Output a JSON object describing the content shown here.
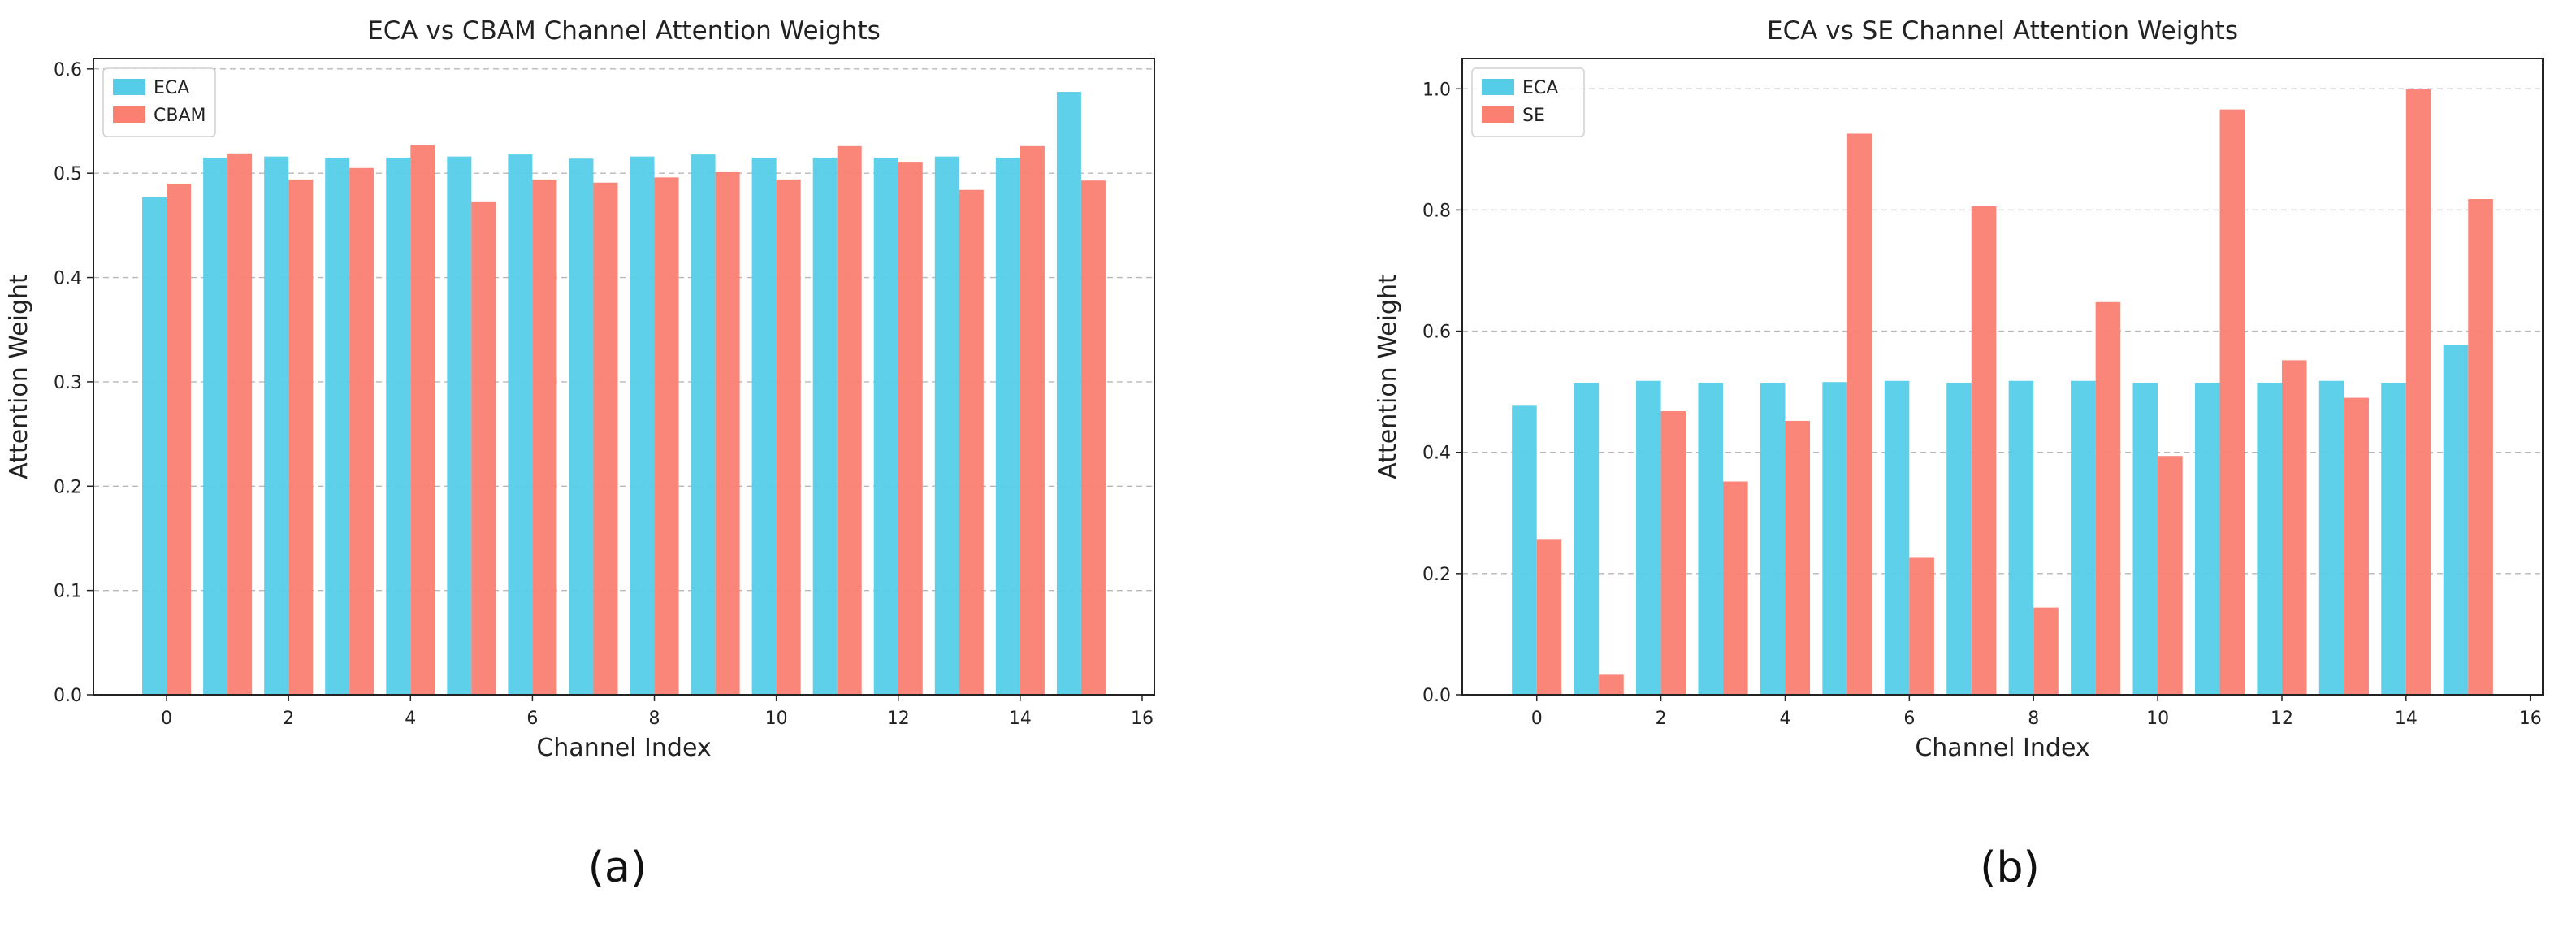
{
  "chart_data": [
    {
      "type": "bar",
      "panel_label": "(a)",
      "title": "ECA vs CBAM Channel Attention Weights",
      "xlabel": "Channel Index",
      "ylabel": "Attention Weight",
      "xlim": [
        -1.2,
        16.2
      ],
      "ylim": [
        0,
        0.61
      ],
      "xticks": [
        0,
        2,
        4,
        6,
        8,
        10,
        12,
        14,
        16
      ],
      "xtick_labels": [
        "0",
        "2",
        "4",
        "6",
        "8",
        "10",
        "12",
        "14",
        "16"
      ],
      "yticks": [
        0.0,
        0.1,
        0.2,
        0.3,
        0.4,
        0.5,
        0.6
      ],
      "ytick_labels": [
        "0.0",
        "0.1",
        "0.2",
        "0.3",
        "0.4",
        "0.5",
        "0.6"
      ],
      "grid": "y-dashed",
      "legend_position": "top-left",
      "categories": [
        0,
        1,
        2,
        3,
        4,
        5,
        6,
        7,
        8,
        9,
        10,
        11,
        12,
        13,
        14,
        15
      ],
      "series": [
        {
          "name": "ECA",
          "color": "#56CDE8",
          "values": [
            0.477,
            0.515,
            0.516,
            0.515,
            0.515,
            0.516,
            0.518,
            0.514,
            0.516,
            0.518,
            0.515,
            0.515,
            0.515,
            0.516,
            0.515,
            0.578
          ]
        },
        {
          "name": "CBAM",
          "color": "#FA8072",
          "values": [
            0.49,
            0.519,
            0.494,
            0.505,
            0.527,
            0.473,
            0.494,
            0.491,
            0.496,
            0.501,
            0.494,
            0.526,
            0.511,
            0.484,
            0.526,
            0.493
          ]
        }
      ]
    },
    {
      "type": "bar",
      "panel_label": "(b)",
      "title": "ECA vs SE Channel Attention Weights",
      "xlabel": "Channel Index",
      "ylabel": "Attention Weight",
      "xlim": [
        -1.2,
        16.2
      ],
      "ylim": [
        0,
        1.05
      ],
      "xticks": [
        0,
        2,
        4,
        6,
        8,
        10,
        12,
        14,
        16
      ],
      "xtick_labels": [
        "0",
        "2",
        "4",
        "6",
        "8",
        "10",
        "12",
        "14",
        "16"
      ],
      "yticks": [
        0.0,
        0.2,
        0.4,
        0.6,
        0.8,
        1.0
      ],
      "ytick_labels": [
        "0.0",
        "0.2",
        "0.4",
        "0.6",
        "0.8",
        "1.0"
      ],
      "grid": "y-dashed",
      "legend_position": "top-left",
      "categories": [
        0,
        1,
        2,
        3,
        4,
        5,
        6,
        7,
        8,
        9,
        10,
        11,
        12,
        13,
        14,
        15
      ],
      "series": [
        {
          "name": "ECA",
          "color": "#56CDE8",
          "values": [
            0.477,
            0.515,
            0.518,
            0.515,
            0.515,
            0.516,
            0.518,
            0.515,
            0.518,
            0.518,
            0.515,
            0.515,
            0.515,
            0.518,
            0.515,
            0.578
          ]
        },
        {
          "name": "SE",
          "color": "#FA8072",
          "values": [
            0.257,
            0.033,
            0.468,
            0.352,
            0.452,
            0.926,
            0.226,
            0.806,
            0.144,
            0.648,
            0.394,
            0.966,
            0.552,
            0.49,
            0.999,
            0.818
          ]
        }
      ]
    }
  ]
}
